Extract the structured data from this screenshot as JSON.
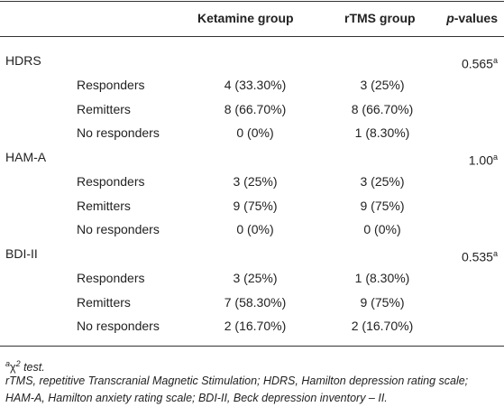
{
  "table": {
    "columns": [
      "Ketamine group",
      "rTMS group"
    ],
    "p_header": {
      "italic": "p",
      "rest": "-values"
    },
    "groups": [
      {
        "label": "HDRS",
        "p_value": "0.565",
        "p_note": "a",
        "rows": [
          {
            "label": "Responders",
            "ketamine": "4 (33.30%)",
            "rtms": "3 (25%)"
          },
          {
            "label": "Remitters",
            "ketamine": "8 (66.70%)",
            "rtms": "8 (66.70%)"
          },
          {
            "label": "No responders",
            "ketamine": "0 (0%)",
            "rtms": "1 (8.30%)"
          }
        ]
      },
      {
        "label": "HAM-A",
        "p_value": "1.00",
        "p_note": "a",
        "rows": [
          {
            "label": "Responders",
            "ketamine": "3 (25%)",
            "rtms": "3 (25%)"
          },
          {
            "label": "Remitters",
            "ketamine": "9 (75%)",
            "rtms": "9 (75%)"
          },
          {
            "label": "No responders",
            "ketamine": "0 (0%)",
            "rtms": "0 (0%)"
          }
        ]
      },
      {
        "label": "BDI-II",
        "p_value": "0.535",
        "p_note": "a",
        "rows": [
          {
            "label": "Responders",
            "ketamine": "3 (25%)",
            "rtms": "1 (8.30%)"
          },
          {
            "label": "Remitters",
            "ketamine": "7 (58.30%)",
            "rtms": "9 (75%)"
          },
          {
            "label": "No responders",
            "ketamine": "2 (16.70%)",
            "rtms": "2 (16.70%)"
          }
        ]
      }
    ]
  },
  "footnotes": {
    "test": {
      "marker": "a",
      "symbol": "χ",
      "power": "2",
      "text": "test."
    },
    "abbreviations": "rTMS, repetitive Transcranial Magnetic Stimulation; HDRS, Hamilton depression rating scale; HAM-A, Hamilton anxiety rating scale; BDI-II, Beck depression inventory – II."
  }
}
